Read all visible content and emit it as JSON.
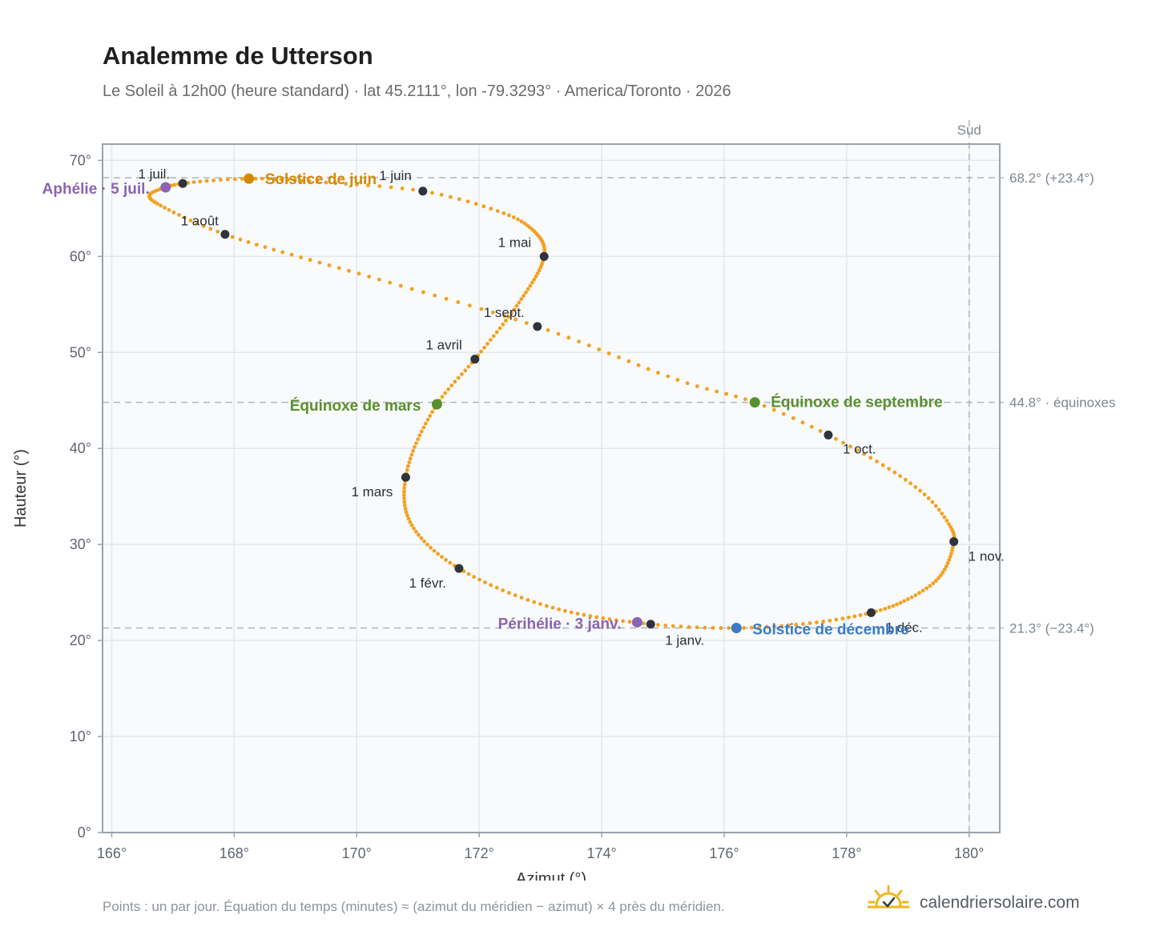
{
  "title": "Analemme de Utterson",
  "subtitle": "Le Soleil à 12h00 (heure standard) · lat 45.2111°, lon -79.3293° · America/Toronto · 2026",
  "footnote": "Points : un par jour. Équation du temps (minutes) ≈ (azimut du méridien − azimut) × 4 près du méridien.",
  "brand": {
    "text": "calendriersolaire.com",
    "icon": "sun-check-icon"
  },
  "colors": {
    "curve": "#f2a122",
    "month_point": "#2f343c",
    "june_solstice": "#d48a00",
    "december_solstice": "#3a7cc6",
    "equinox": "#5a8f2d",
    "apsis": "#8b63b0",
    "plot_bg": "#f8fafc",
    "grid": "#e3e8ee",
    "frame": "#9aa3ad",
    "ref_line": "#aeb6bf"
  },
  "chart_data": {
    "type": "scatter",
    "xlabel": "Azimut (°)",
    "ylabel": "Hauteur (°)",
    "xlim": [
      165.85,
      180.5
    ],
    "ylim": [
      0,
      71.7
    ],
    "x_ticks": [
      {
        "value": 166,
        "label": "166°"
      },
      {
        "value": 168,
        "label": "168°"
      },
      {
        "value": 170,
        "label": "170°"
      },
      {
        "value": 172,
        "label": "172°"
      },
      {
        "value": 174,
        "label": "174°"
      },
      {
        "value": 176,
        "label": "176°"
      },
      {
        "value": 178,
        "label": "178°"
      },
      {
        "value": 180,
        "label": "180°"
      }
    ],
    "y_ticks": [
      {
        "value": 0,
        "label": "0°"
      },
      {
        "value": 10,
        "label": "10°"
      },
      {
        "value": 20,
        "label": "20°"
      },
      {
        "value": 30,
        "label": "30°"
      },
      {
        "value": 40,
        "label": "40°"
      },
      {
        "value": 50,
        "label": "50°"
      },
      {
        "value": 60,
        "label": "60°"
      },
      {
        "value": 70,
        "label": "70°"
      }
    ],
    "grid": true,
    "south_line": {
      "azimuth": 180,
      "label": "Sud"
    },
    "reference_lines": [
      {
        "altitude": 68.2,
        "label": "68.2° (+23.4°)"
      },
      {
        "altitude": 44.8,
        "label": "44.8° · équinoxes"
      },
      {
        "altitude": 21.3,
        "label": "21.3° (−23.4°)"
      }
    ],
    "months": [
      {
        "label": "1 janv.",
        "azimuth": 174.8,
        "altitude": 21.7
      },
      {
        "label": "1 févr.",
        "azimuth": 171.67,
        "altitude": 27.5
      },
      {
        "label": "1 mars",
        "azimuth": 170.8,
        "altitude": 37.0
      },
      {
        "label": "1 avril",
        "azimuth": 171.93,
        "altitude": 49.3
      },
      {
        "label": "1 mai",
        "azimuth": 173.06,
        "altitude": 60.0
      },
      {
        "label": "1 juin",
        "azimuth": 171.08,
        "altitude": 66.8
      },
      {
        "label": "1 juil.",
        "azimuth": 167.16,
        "altitude": 67.6
      },
      {
        "label": "1 août",
        "azimuth": 167.85,
        "altitude": 62.3
      },
      {
        "label": "1 sept.",
        "azimuth": 172.95,
        "altitude": 52.7
      },
      {
        "label": "1 oct.",
        "azimuth": 177.7,
        "altitude": 41.4
      },
      {
        "label": "1 nov.",
        "azimuth": 179.75,
        "altitude": 30.3
      },
      {
        "label": "1 déc.",
        "azimuth": 178.4,
        "altitude": 22.9
      }
    ],
    "events": [
      {
        "label": "Solstice de juin",
        "azimuth": 168.24,
        "altitude": 68.1,
        "color": "#d48a00"
      },
      {
        "label": "Solstice de décembre",
        "azimuth": 176.2,
        "altitude": 21.3,
        "color": "#3a7cc6"
      },
      {
        "label": "Équinoxe de mars",
        "azimuth": 171.31,
        "altitude": 44.6,
        "color": "#5a8f2d"
      },
      {
        "label": "Équinoxe de septembre",
        "azimuth": 176.5,
        "altitude": 44.8,
        "color": "#5a8f2d"
      },
      {
        "label": "Aphélie · 5 juil.",
        "azimuth": 166.88,
        "altitude": 67.2,
        "color": "#8b63b0"
      },
      {
        "label": "Périhélie · 3 janv.",
        "azimuth": 174.58,
        "altitude": 21.9,
        "color": "#8b63b0"
      }
    ],
    "curve_path": [
      {
        "day": 0,
        "azimuth": 174.8,
        "altitude": 21.7
      },
      {
        "day": 16,
        "azimuth": 173.1,
        "altitude": 23.6
      },
      {
        "day": 31,
        "azimuth": 171.67,
        "altitude": 27.5
      },
      {
        "day": 45,
        "azimuth": 170.9,
        "altitude": 32.0
      },
      {
        "day": 59,
        "azimuth": 170.8,
        "altitude": 37.0
      },
      {
        "day": 78,
        "azimuth": 171.31,
        "altitude": 44.6
      },
      {
        "day": 90,
        "azimuth": 171.93,
        "altitude": 49.3
      },
      {
        "day": 105,
        "azimuth": 172.65,
        "altitude": 55.2
      },
      {
        "day": 120,
        "azimuth": 173.06,
        "altitude": 60.0
      },
      {
        "day": 132,
        "azimuth": 172.9,
        "altitude": 62.6
      },
      {
        "day": 141,
        "azimuth": 172.4,
        "altitude": 64.5
      },
      {
        "day": 151,
        "azimuth": 171.08,
        "altitude": 66.8
      },
      {
        "day": 160,
        "azimuth": 169.5,
        "altitude": 67.7
      },
      {
        "day": 171,
        "azimuth": 168.24,
        "altitude": 68.1
      },
      {
        "day": 181,
        "azimuth": 167.16,
        "altitude": 67.6
      },
      {
        "day": 186,
        "azimuth": 166.88,
        "altitude": 67.2
      },
      {
        "day": 193,
        "azimuth": 166.62,
        "altitude": 66.4
      },
      {
        "day": 201,
        "azimuth": 166.8,
        "altitude": 65.3
      },
      {
        "day": 212,
        "azimuth": 167.85,
        "altitude": 62.3
      },
      {
        "day": 228,
        "azimuth": 170.2,
        "altitude": 57.9
      },
      {
        "day": 243,
        "azimuth": 172.95,
        "altitude": 52.7
      },
      {
        "day": 258,
        "azimuth": 175.4,
        "altitude": 46.8
      },
      {
        "day": 265,
        "azimuth": 176.5,
        "altitude": 44.8
      },
      {
        "day": 273,
        "azimuth": 177.7,
        "altitude": 41.4
      },
      {
        "day": 288,
        "azimuth": 179.2,
        "altitude": 35.6
      },
      {
        "day": 298,
        "azimuth": 179.7,
        "altitude": 31.8
      },
      {
        "day": 304,
        "azimuth": 179.75,
        "altitude": 30.3
      },
      {
        "day": 316,
        "azimuth": 179.5,
        "altitude": 26.5
      },
      {
        "day": 325,
        "azimuth": 179.0,
        "altitude": 24.3
      },
      {
        "day": 334,
        "azimuth": 178.4,
        "altitude": 22.9
      },
      {
        "day": 344,
        "azimuth": 177.4,
        "altitude": 21.8
      },
      {
        "day": 354,
        "azimuth": 176.2,
        "altitude": 21.3
      },
      {
        "day": 365,
        "azimuth": 174.8,
        "altitude": 21.7
      }
    ]
  }
}
